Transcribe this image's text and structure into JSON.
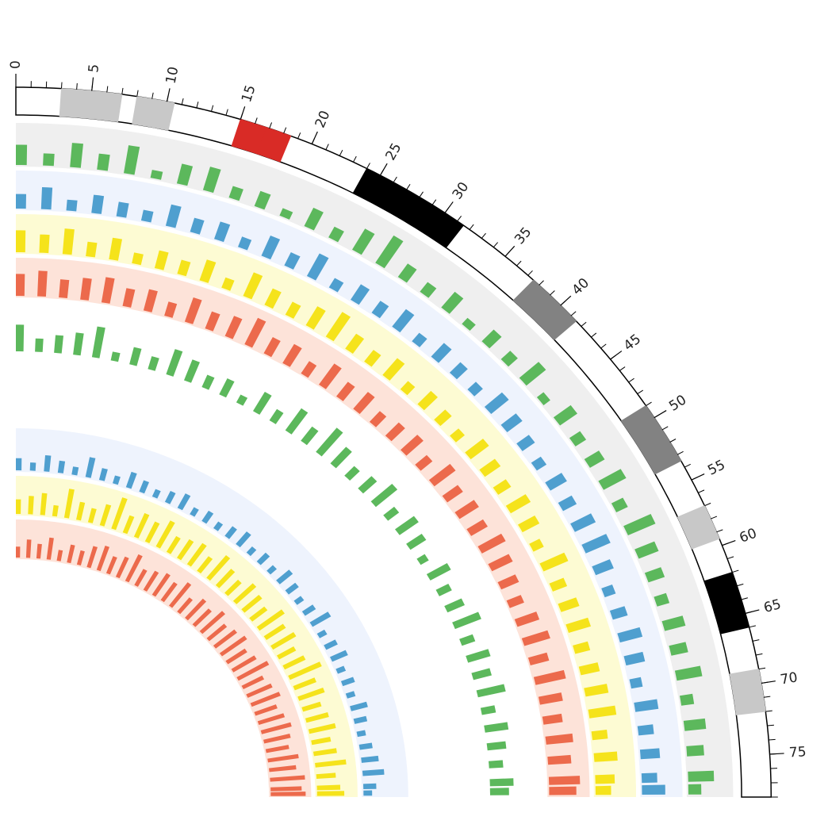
{
  "chart_data": {
    "type": "circos",
    "xlim": [
      0,
      78
    ],
    "xticks": [
      0,
      5,
      10,
      15,
      20,
      25,
      30,
      35,
      40,
      45,
      50,
      55,
      60,
      65,
      70,
      75
    ],
    "xminor": 1,
    "bands": [
      {
        "start": 3,
        "end": 7,
        "color": "#c8c8c8"
      },
      {
        "start": 8,
        "end": 10.5,
        "color": "#c8c8c8"
      },
      {
        "start": 15,
        "end": 16.8,
        "color": "#d92b26"
      },
      {
        "start": 16.8,
        "end": 18.5,
        "color": "#d92b26"
      },
      {
        "start": 24,
        "end": 31.5,
        "color": "#000000"
      },
      {
        "start": 37.5,
        "end": 41.5,
        "color": "#828282"
      },
      {
        "start": 49,
        "end": 53.5,
        "color": "#828282"
      },
      {
        "start": 57,
        "end": 59.5,
        "color": "#c8c8c8"
      },
      {
        "start": 62,
        "end": 66,
        "color": "#000000"
      },
      {
        "start": 69,
        "end": 72,
        "color": "#c8c8c8"
      }
    ],
    "x": [
      0,
      2,
      4,
      6,
      8,
      10,
      12,
      14,
      16,
      18,
      20,
      22,
      24,
      26,
      28,
      30,
      32,
      34,
      36,
      38,
      40,
      42,
      44,
      46,
      48,
      50,
      52,
      54,
      56,
      58,
      60,
      62,
      64,
      66,
      68,
      70,
      72,
      74,
      76,
      77
    ],
    "tracks": [
      {
        "color": "#5cb85c",
        "bg": "#efefef",
        "values": [
          0.5,
          0.3,
          0.6,
          0.4,
          0.7,
          0.2,
          0.5,
          0.6,
          0.3,
          0.4,
          0.2,
          0.5,
          0.3,
          0.6,
          0.8,
          0.4,
          0.3,
          0.5,
          0.2,
          0.4,
          0.3,
          0.6,
          0.2,
          0.5,
          0.3,
          0.4,
          0.6,
          0.3,
          0.7,
          0.5,
          0.4,
          0.3,
          0.5,
          0.4,
          0.6,
          0.3,
          0.5,
          0.4,
          0.6,
          0.3
        ]
      },
      {
        "color": "#4f9fcf",
        "bg": "#eef3fd",
        "values": [
          0.4,
          0.6,
          0.3,
          0.5,
          0.4,
          0.3,
          0.6,
          0.4,
          0.5,
          0.3,
          0.6,
          0.4,
          0.7,
          0.3,
          0.5,
          0.4,
          0.6,
          0.3,
          0.5,
          0.4,
          0.3,
          0.6,
          0.5,
          0.4,
          0.3,
          0.5,
          0.4,
          0.6,
          0.7,
          0.5,
          0.3,
          0.4,
          0.6,
          0.5,
          0.3,
          0.6,
          0.4,
          0.5,
          0.4,
          0.6
        ]
      },
      {
        "color": "#f5e31b",
        "bg": "#fdfbd3",
        "values": [
          0.6,
          0.5,
          0.7,
          0.4,
          0.6,
          0.3,
          0.5,
          0.4,
          0.6,
          0.3,
          0.7,
          0.5,
          0.4,
          0.6,
          0.8,
          0.5,
          0.4,
          0.6,
          0.3,
          0.5,
          0.4,
          0.3,
          0.6,
          0.5,
          0.4,
          0.6,
          0.5,
          0.3,
          0.7,
          0.4,
          0.5,
          0.6,
          0.4,
          0.5,
          0.6,
          0.7,
          0.4,
          0.6,
          0.5,
          0.4
        ]
      },
      {
        "color": "#ec6a4c",
        "bg": "#fde3d9",
        "values": [
          0.6,
          0.7,
          0.5,
          0.6,
          0.7,
          0.5,
          0.6,
          0.4,
          0.7,
          0.5,
          0.6,
          0.8,
          0.5,
          0.6,
          0.4,
          0.7,
          0.5,
          0.6,
          0.4,
          0.5,
          0.6,
          0.4,
          0.7,
          0.5,
          0.6,
          0.5,
          0.7,
          0.6,
          0.5,
          0.4,
          0.6,
          0.7,
          0.5,
          0.8,
          0.6,
          0.5,
          0.7,
          0.6,
          0.8,
          0.7
        ]
      },
      {
        "color": "#5cb85c",
        "bg": "#ffffff",
        "values": [
          0.6,
          0.3,
          0.4,
          0.5,
          0.7,
          0.2,
          0.4,
          0.3,
          0.6,
          0.5,
          0.3,
          0.4,
          0.2,
          0.5,
          0.3,
          0.6,
          0.4,
          0.7,
          0.5,
          0.3,
          0.4,
          0.6,
          0.3,
          0.5,
          0.4,
          0.2,
          0.5,
          0.3,
          0.4,
          0.6,
          0.3,
          0.5,
          0.4,
          0.6,
          0.3,
          0.5,
          0.4,
          0.3,
          0.5,
          0.4
        ]
      },
      {
        "color": "#4f9fcf",
        "bg": "#eef3fd",
        "values": [
          0.3,
          0.2,
          0.4,
          0.3,
          0.2,
          0.5,
          0.3,
          0.2,
          0.4,
          0.3,
          0.2,
          0.3,
          0.4,
          0.2,
          0.3,
          0.2,
          0.3,
          0.4,
          0.2,
          0.3,
          0.2,
          0.4,
          0.3,
          0.2,
          0.3,
          0.5,
          0.2,
          0.3,
          0.4,
          0.2,
          0.3,
          0.2,
          0.4,
          0.3,
          0.2,
          0.3,
          0.4,
          0.5,
          0.3,
          0.2
        ]
      },
      {
        "color": "#f5e31b",
        "bg": "#fdfbd3",
        "values": [
          0.4,
          0.5,
          0.6,
          0.3,
          0.8,
          0.5,
          0.4,
          0.6,
          0.9,
          0.5,
          0.7,
          0.6,
          0.8,
          0.5,
          0.6,
          0.7,
          0.5,
          0.8,
          0.6,
          0.5,
          0.7,
          0.6,
          0.5,
          0.8,
          0.6,
          0.7,
          0.5,
          0.6,
          0.9,
          0.6,
          0.7,
          0.5,
          0.6,
          0.7,
          0.5,
          0.6,
          0.8,
          0.5,
          0.6,
          0.7
        ]
      },
      {
        "color": "#ec6a4c",
        "bg": "#fde3d9",
        "values": [
          0.3,
          0.5,
          0.4,
          0.6,
          0.3,
          0.5,
          0.4,
          0.6,
          0.7,
          0.5,
          0.6,
          0.8,
          0.5,
          0.6,
          0.7,
          0.6,
          0.8,
          0.5,
          0.7,
          0.6,
          0.8,
          0.6,
          0.7,
          0.8,
          0.6,
          0.7,
          0.9,
          0.6,
          0.7,
          0.8,
          0.6,
          0.7,
          0.8,
          0.7,
          0.6,
          0.8,
          0.7,
          0.9,
          0.8,
          0.9
        ]
      }
    ]
  }
}
